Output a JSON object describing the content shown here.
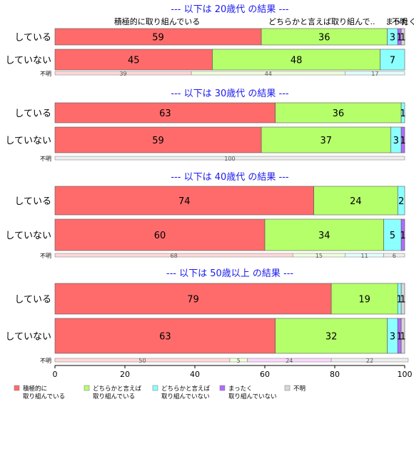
{
  "chart_data": {
    "type": "bar",
    "orientation": "horizontal",
    "stacked": true,
    "xlim": [
      0,
      100
    ],
    "xticks": [
      0,
      20,
      40,
      60,
      80,
      100
    ],
    "category_labels_top": [
      "積極的に取り組んでいる",
      "どちらかと言えば取り組んで..",
      "まったく..",
      "不明"
    ],
    "legend": {
      "placement": "bottom",
      "entries": [
        {
          "line1": "積極的に",
          "line2": "取り組んでいる",
          "color": "#ff6b6b"
        },
        {
          "line1": "どちらかと言えば",
          "line2": "取り組んでいる",
          "color": "#b5ff6b"
        },
        {
          "line1": "どちらかと言えば",
          "line2": "取り組んでいない",
          "color": "#8cffff"
        },
        {
          "line1": "まったく",
          "line2": "取り組んでいない",
          "color": "#b26bff"
        },
        {
          "line1": "不明",
          "line2": "",
          "color": "#d8d8d8"
        }
      ]
    },
    "thin_colors": [
      "#ffd9d9",
      "#f0ffdc",
      "#e3ffff",
      "#fbd9ff",
      "#eeeeee"
    ],
    "panels": [
      {
        "title": "--- 以下は 20歳代 の結果 ---",
        "rows": [
          {
            "label": "している",
            "values": [
              59,
              36,
              3,
              1,
              1
            ],
            "labels": [
              "59",
              "36",
              "3",
              "1",
              "1"
            ]
          },
          {
            "label": "していない",
            "values": [
              45,
              48,
              7,
              0,
              0
            ],
            "labels": [
              "45",
              "48",
              "7",
              "",
              ""
            ]
          }
        ],
        "unknown_row": {
          "label": "不明",
          "values": [
            39,
            44,
            17,
            0,
            0
          ],
          "labels": [
            "39",
            "44",
            "17",
            "",
            ""
          ]
        }
      },
      {
        "title": "--- 以下は 30歳代 の結果 ---",
        "rows": [
          {
            "label": "している",
            "values": [
              63,
              36,
              1,
              0,
              0
            ],
            "labels": [
              "63",
              "36",
              "1",
              "",
              ""
            ]
          },
          {
            "label": "していない",
            "values": [
              59,
              37,
              3,
              1,
              0
            ],
            "labels": [
              "59",
              "37",
              "3",
              "1",
              ""
            ]
          }
        ],
        "unknown_row": {
          "label": "不明",
          "values": [
            0,
            0,
            0,
            0,
            100
          ],
          "labels": [
            "",
            "",
            "",
            "",
            "100"
          ]
        }
      },
      {
        "title": "--- 以下は 40歳代 の結果 ---",
        "rows": [
          {
            "label": "している",
            "values": [
              74,
              24,
              2,
              0,
              0
            ],
            "labels": [
              "74",
              "24",
              "2",
              "",
              ""
            ]
          },
          {
            "label": "していない",
            "values": [
              60,
              34,
              5,
              1,
              0
            ],
            "labels": [
              "60",
              "34",
              "5",
              "1",
              ""
            ]
          }
        ],
        "unknown_row": {
          "label": "不明",
          "values": [
            68,
            15,
            11,
            0,
            6
          ],
          "labels": [
            "68",
            "15",
            "11",
            "",
            "6"
          ]
        }
      },
      {
        "title": "--- 以下は 50歳以上 の結果 ---",
        "rows": [
          {
            "label": "している",
            "values": [
              79,
              19,
              1,
              0,
              1
            ],
            "labels": [
              "79",
              "19",
              "1",
              "",
              "1"
            ]
          },
          {
            "label": "していない",
            "values": [
              63,
              32,
              3,
              1,
              1
            ],
            "labels": [
              "63",
              "32",
              "3",
              "1",
              "1"
            ]
          }
        ],
        "unknown_row": {
          "label": "不明",
          "values": [
            50,
            5,
            0,
            24,
            22
          ],
          "labels": [
            "50",
            "5",
            "",
            "24",
            "22"
          ]
        }
      }
    ]
  }
}
